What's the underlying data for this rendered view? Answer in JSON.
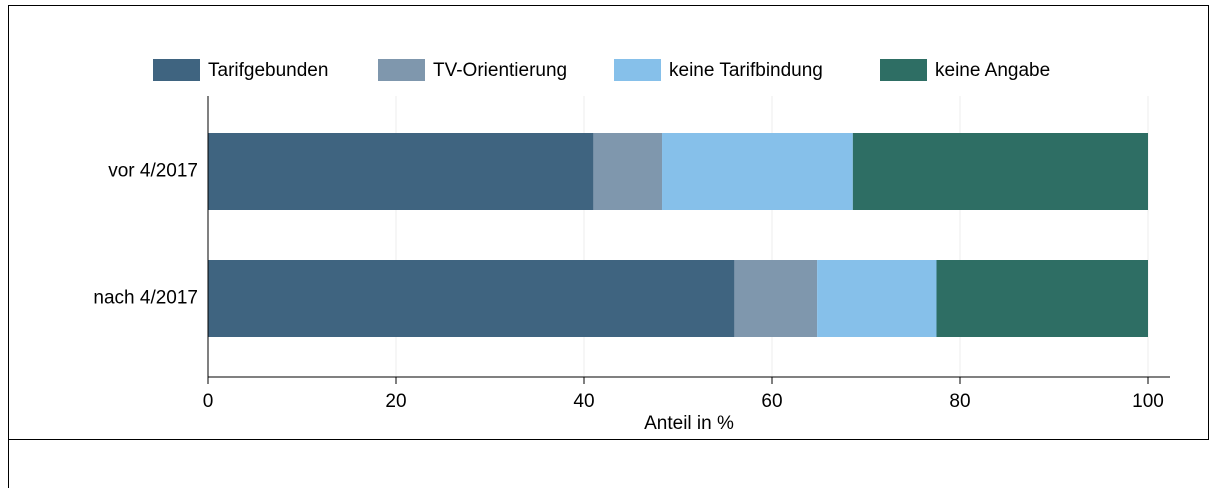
{
  "chart_data": {
    "type": "stacked-barh",
    "x_label": "Anteil in %",
    "categories": [
      "vor 4/2017",
      "nach 4/2017"
    ],
    "series": [
      {
        "name": "Tarifgebunden",
        "color": "#3f6480",
        "values": [
          41,
          56
        ]
      },
      {
        "name": "TV-Orientierung",
        "color": "#7f97ad",
        "values": [
          7.3,
          8.8
        ]
      },
      {
        "name": "keine Tarifbindung",
        "color": "#86c0ea",
        "values": [
          20.3,
          12.7
        ]
      },
      {
        "name": "keine Angabe",
        "color": "#2e6e64",
        "values": [
          31.4,
          22.5
        ]
      }
    ],
    "xlim": [
      0,
      100
    ],
    "xticks": [
      0,
      20,
      40,
      60,
      80,
      100
    ],
    "grid": true,
    "legend": "top"
  }
}
